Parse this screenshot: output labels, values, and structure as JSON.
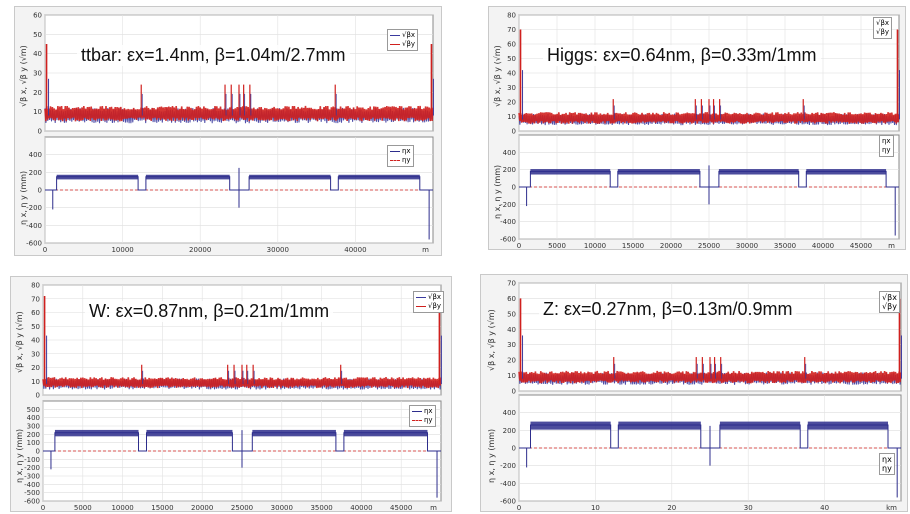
{
  "panels": [
    {
      "title": "ttbar: εx=1.4nm, β=1.04m/2.7mm",
      "top_ylabel": "√β x, √β y (√m)",
      "bottom_ylabel": "η x, η y (mm)",
      "top_legend": [
        "√βx",
        "√βy"
      ],
      "bottom_legend": [
        "ηx",
        "ηy"
      ],
      "xunit": "m"
    },
    {
      "title": "Higgs: εx=0.64nm, β=0.33m/1mm",
      "top_ylabel": "√β x, √β y (√m)",
      "bottom_ylabel": "η x, η y (mm)",
      "top_legend": [
        "√βx",
        "√βy"
      ],
      "bottom_legend": [
        "ηx",
        "ηy"
      ],
      "xunit": "m"
    },
    {
      "title": "W: εx=0.87nm, β=0.21m/1mm",
      "top_ylabel": "√β x, √β y (√m)",
      "bottom_ylabel": "η x, η y (mm)",
      "top_legend": [
        "√βx",
        "√βy"
      ],
      "bottom_legend": [
        "ηx",
        "ηy"
      ],
      "xunit": "m"
    },
    {
      "title": "Z: εx=0.27nm, β=0.13m/0.9mm",
      "top_ylabel": "√β x, √β y (√m)",
      "bottom_ylabel": "η x, η y (mm)",
      "top_legend": [
        "√βx",
        "√βy"
      ],
      "bottom_legend": [
        "ηx",
        "ηy"
      ],
      "xunit": "km"
    }
  ],
  "chart_data": [
    {
      "type": "line",
      "title": "ttbar: εx=1.4nm, β=1.04m/2.7mm",
      "xlim": [
        0,
        50000
      ],
      "xticks": [
        0,
        10000,
        20000,
        30000,
        40000
      ],
      "top": {
        "ylabel": "√βx, √βy (√m)",
        "ylim": [
          0,
          60
        ],
        "yticks": [
          0,
          10,
          20,
          30,
          40,
          50,
          60
        ],
        "series": [
          {
            "name": "√βx",
            "color": "#3a3a9e",
            "base": 8
          },
          {
            "name": "√βy",
            "color": "#d0201e",
            "base": 9
          }
        ],
        "spikes_x": [
          12400,
          23200,
          24000,
          25000,
          25600,
          26400,
          37400
        ],
        "spike_height": 24,
        "edge_peak": 45
      },
      "bottom": {
        "ylabel": "ηx, ηy (mm)",
        "ylim": [
          -600,
          600
        ],
        "yticks": [
          -600,
          -400,
          -200,
          0,
          200,
          400
        ],
        "series": [
          {
            "name": "ηx",
            "color": "#2d2d8c",
            "plateau": 150
          },
          {
            "name": "ηy",
            "color": "#d0201e",
            "plateau": 0
          }
        ],
        "segments": [
          [
            1500,
            12000
          ],
          [
            13000,
            23800
          ],
          [
            26300,
            36800
          ],
          [
            37800,
            48300
          ]
        ]
      }
    },
    {
      "type": "line",
      "title": "Higgs: εx=0.64nm, β=0.33m/1mm",
      "xlim": [
        0,
        50000
      ],
      "xticks": [
        0,
        5000,
        10000,
        15000,
        20000,
        25000,
        30000,
        35000,
        40000,
        45000
      ],
      "top": {
        "ylabel": "√βx, √βy (√m)",
        "ylim": [
          0,
          80
        ],
        "yticks": [
          0,
          10,
          20,
          30,
          40,
          50,
          60,
          70,
          80
        ],
        "series": [
          {
            "name": "√βx",
            "color": "#3a3a9e",
            "base": 8
          },
          {
            "name": "√βy",
            "color": "#d0201e",
            "base": 9
          }
        ],
        "spikes_x": [
          12400,
          23200,
          24000,
          25000,
          25600,
          26400,
          37400
        ],
        "spike_height": 22,
        "edge_peak": 70
      },
      "bottom": {
        "ylabel": "ηx, ηy (mm)",
        "ylim": [
          -600,
          600
        ],
        "yticks": [
          -600,
          -400,
          -200,
          0,
          200,
          400
        ],
        "series": [
          {
            "name": "ηx",
            "color": "#2d2d8c",
            "plateau": 180
          },
          {
            "name": "ηy",
            "color": "#d0201e",
            "plateau": 0
          }
        ],
        "segments": [
          [
            1500,
            12000
          ],
          [
            13000,
            23800
          ],
          [
            26300,
            36800
          ],
          [
            37800,
            48300
          ]
        ]
      }
    },
    {
      "type": "line",
      "title": "W: εx=0.87nm, β=0.21m/1mm",
      "xlim": [
        0,
        50000
      ],
      "xticks": [
        0,
        5000,
        10000,
        15000,
        20000,
        25000,
        30000,
        35000,
        40000,
        45000
      ],
      "top": {
        "ylabel": "√βx, √βy (√m)",
        "ylim": [
          0,
          80
        ],
        "yticks": [
          0,
          10,
          20,
          30,
          40,
          50,
          60,
          70,
          80
        ],
        "series": [
          {
            "name": "√βx",
            "color": "#3a3a9e",
            "base": 8
          },
          {
            "name": "√βy",
            "color": "#d0201e",
            "base": 9
          }
        ],
        "spikes_x": [
          12400,
          23200,
          24000,
          25000,
          25600,
          26400,
          37400
        ],
        "spike_height": 22,
        "edge_peak": 72
      },
      "bottom": {
        "ylabel": "ηx, ηy (mm)",
        "ylim": [
          -600,
          600
        ],
        "yticks": [
          -600,
          -500,
          -400,
          -300,
          -200,
          -100,
          0,
          100,
          200,
          300,
          400,
          500
        ],
        "series": [
          {
            "name": "ηx",
            "color": "#2d2d8c",
            "plateau": 220
          },
          {
            "name": "ηy",
            "color": "#d0201e",
            "plateau": 0
          }
        ],
        "segments": [
          [
            1500,
            12000
          ],
          [
            13000,
            23800
          ],
          [
            26300,
            36800
          ],
          [
            37800,
            48300
          ]
        ]
      }
    },
    {
      "type": "line",
      "title": "Z: εx=0.27nm, β=0.13m/0.9mm",
      "xlim": [
        0,
        50
      ],
      "xticks": [
        0,
        10,
        20,
        30,
        40
      ],
      "top": {
        "ylabel": "√βx, √βy (√m)",
        "ylim": [
          0,
          70
        ],
        "yticks": [
          0,
          10,
          20,
          30,
          40,
          50,
          60,
          70
        ],
        "series": [
          {
            "name": "√βx",
            "color": "#3a3a9e",
            "base": 8
          },
          {
            "name": "√βy",
            "color": "#d0201e",
            "base": 9
          }
        ],
        "spikes_x": [
          12.4,
          23.2,
          24.0,
          25.0,
          25.6,
          26.4,
          37.4
        ],
        "spike_height": 22,
        "edge_peak": 60
      },
      "bottom": {
        "ylabel": "ηx, ηy (mm)",
        "ylim": [
          -600,
          600
        ],
        "yticks": [
          -600,
          -400,
          -200,
          0,
          200,
          400
        ],
        "series": [
          {
            "name": "ηx",
            "color": "#2d2d8c",
            "plateau": 260
          },
          {
            "name": "ηy",
            "color": "#d0201e",
            "plateau": 0
          }
        ],
        "segments": [
          [
            1.5,
            12.0
          ],
          [
            13.0,
            23.8
          ],
          [
            26.3,
            36.8
          ],
          [
            37.8,
            48.3
          ]
        ]
      }
    }
  ]
}
